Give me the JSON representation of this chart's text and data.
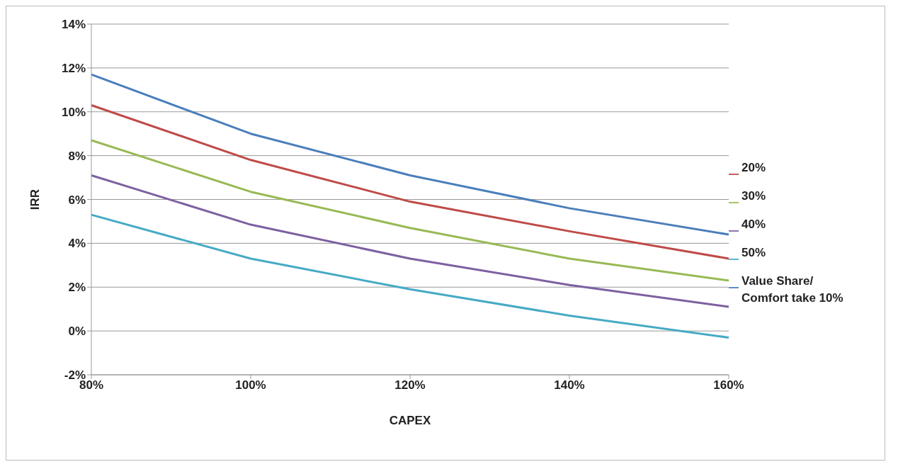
{
  "chart_data": {
    "type": "line",
    "xlabel": "CAPEX",
    "ylabel": "IRR",
    "categories": [
      "80%",
      "100%",
      "120%",
      "140%",
      "160%"
    ],
    "series": [
      {
        "name": "Value Share/ Comfort take 10%",
        "color": "#4a7ebb",
        "values": [
          11.7,
          9.0,
          7.1,
          5.6,
          4.4
        ]
      },
      {
        "name": "20%",
        "color": "#be4b48",
        "values": [
          10.3,
          7.8,
          5.9,
          4.55,
          3.3
        ]
      },
      {
        "name": "30%",
        "color": "#98b954",
        "values": [
          8.7,
          6.35,
          4.7,
          3.3,
          2.3
        ]
      },
      {
        "name": "40%",
        "color": "#7d60a0",
        "values": [
          7.1,
          4.85,
          3.3,
          2.1,
          1.1
        ]
      },
      {
        "name": "50%",
        "color": "#46aac5",
        "values": [
          5.3,
          3.3,
          1.9,
          0.7,
          -0.3
        ]
      }
    ],
    "ylim": [
      -2,
      14
    ],
    "yticks": [
      {
        "value": -2,
        "label": "-2%"
      },
      {
        "value": 0,
        "label": "0%"
      },
      {
        "value": 2,
        "label": "2%"
      },
      {
        "value": 4,
        "label": "4%"
      },
      {
        "value": 6,
        "label": "6%"
      },
      {
        "value": 8,
        "label": "8%"
      },
      {
        "value": 10,
        "label": "10%"
      },
      {
        "value": 12,
        "label": "12%"
      },
      {
        "value": 14,
        "label": "14%"
      }
    ],
    "grid": "y",
    "legend": "right",
    "marker": "none",
    "line_style": "solid"
  }
}
